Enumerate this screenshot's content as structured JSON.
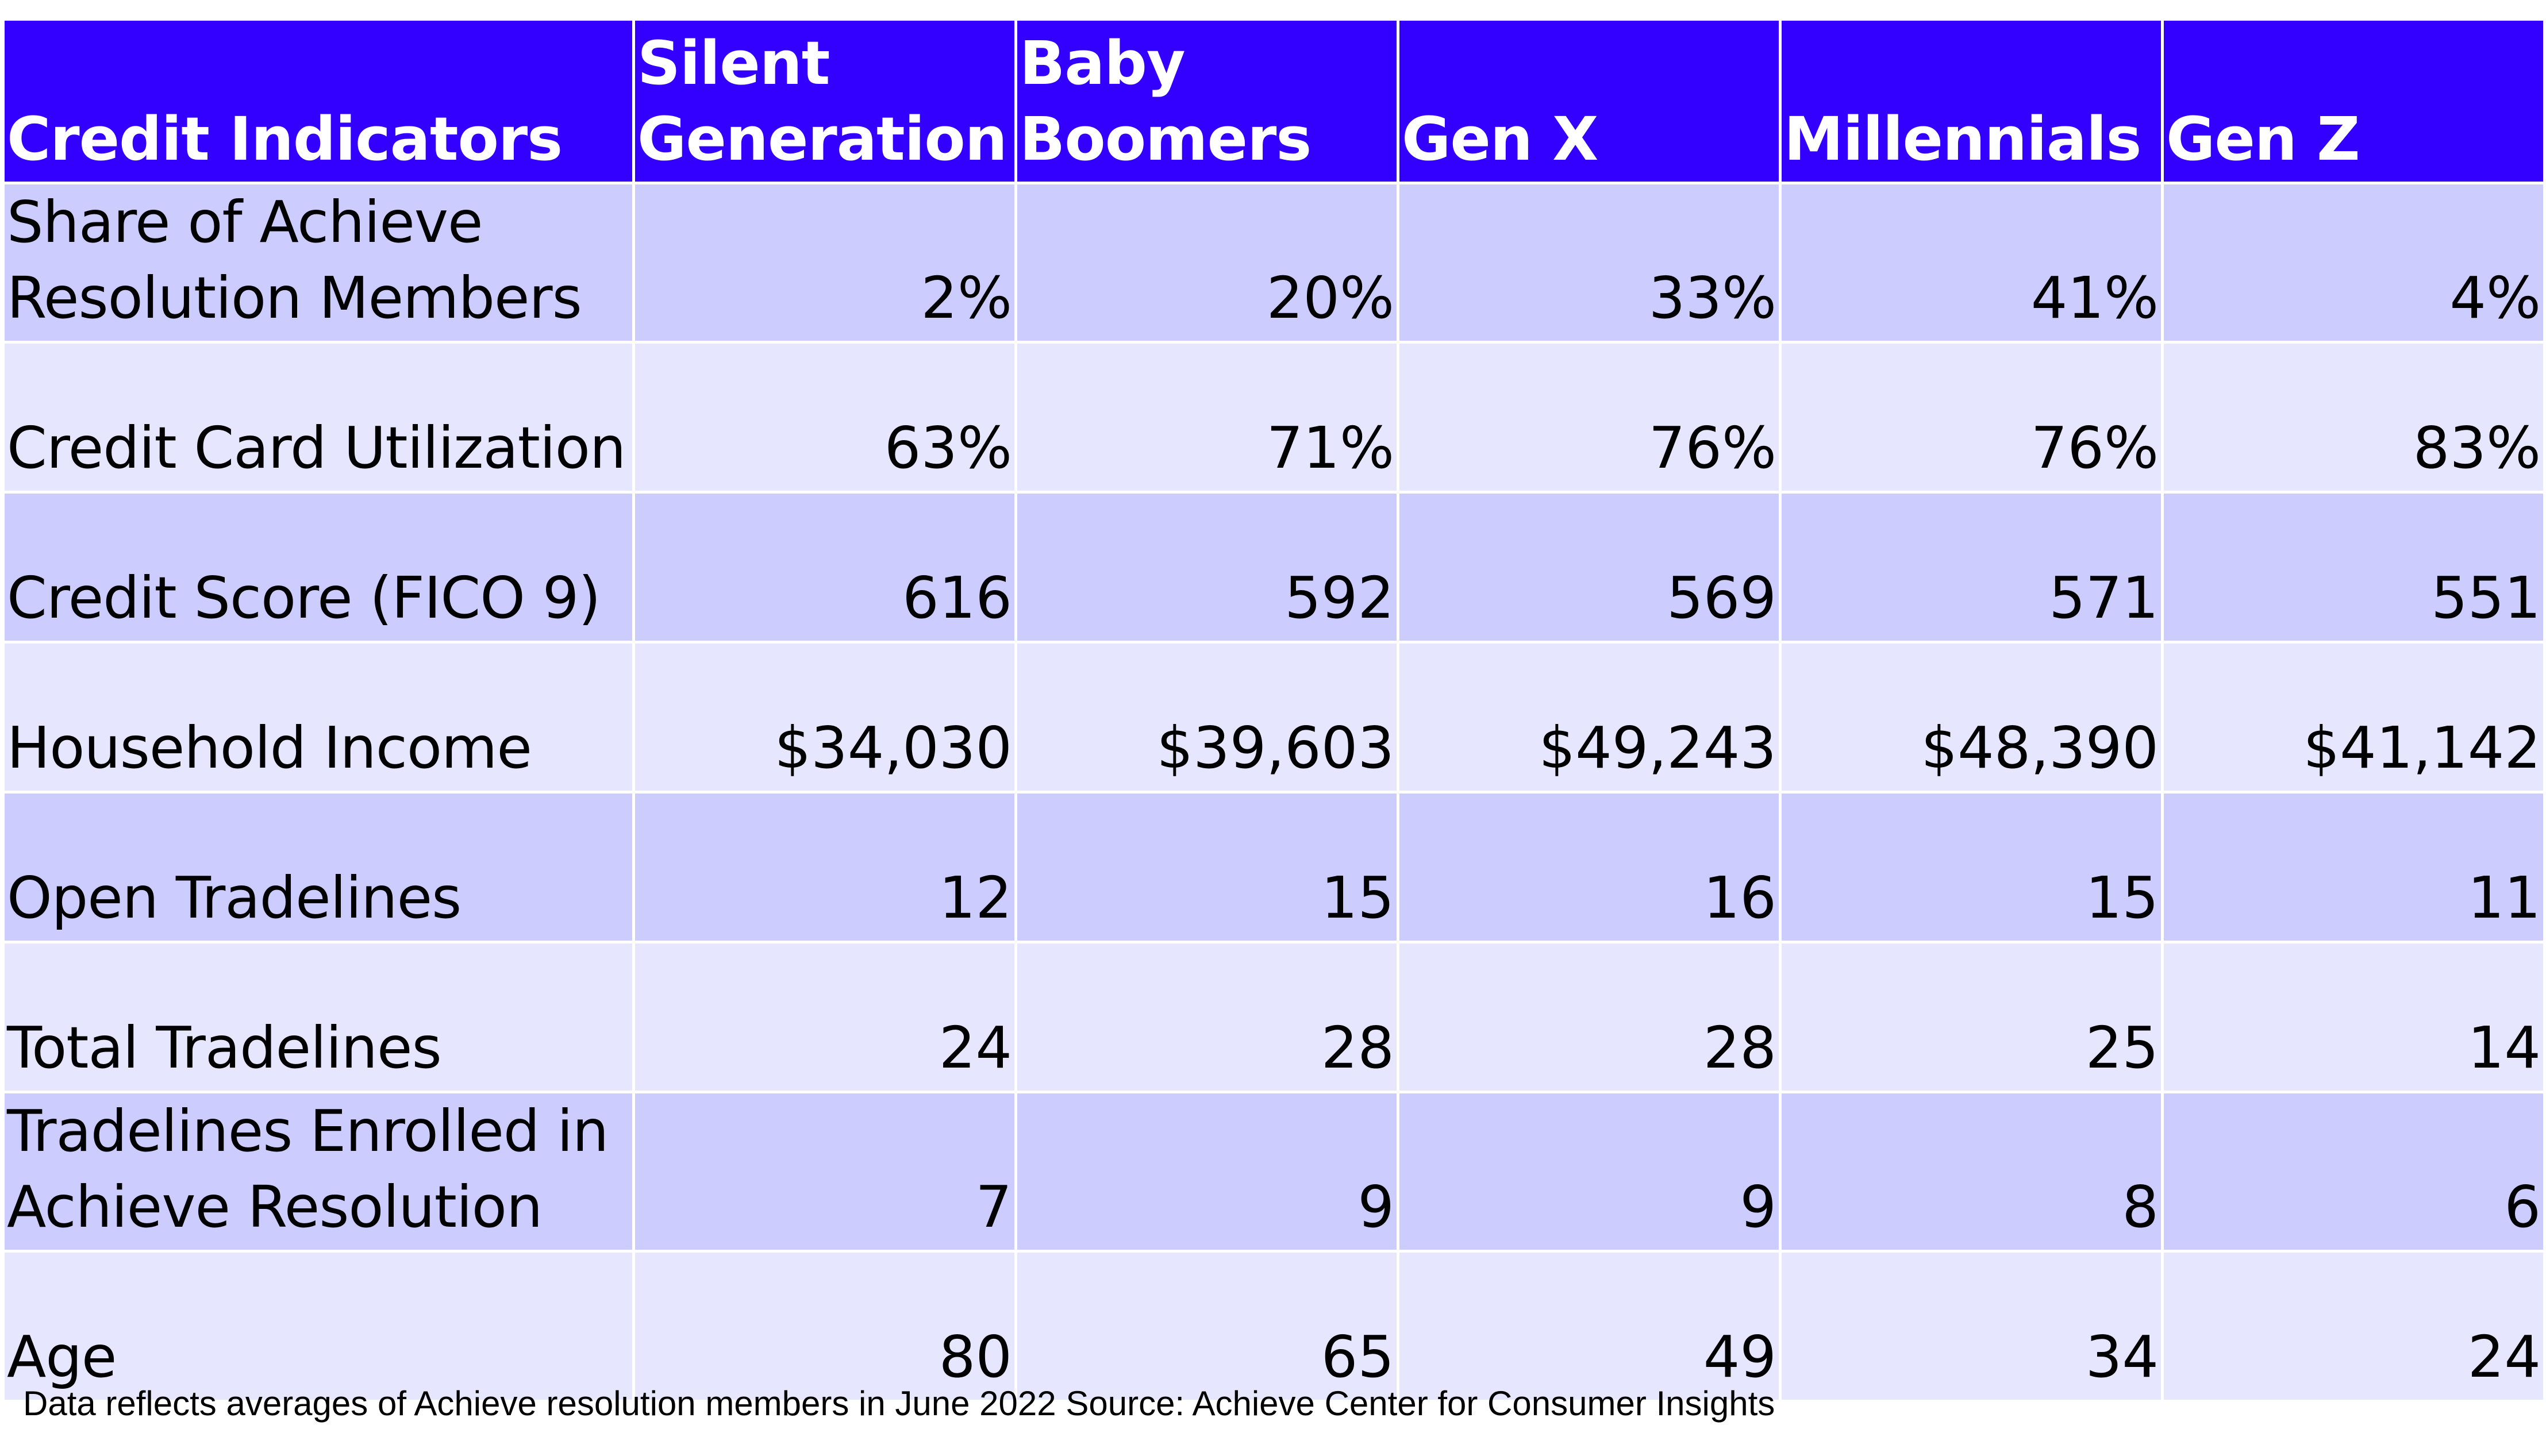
{
  "colors": {
    "header_bg": "#3300ff",
    "header_text": "#ffffff",
    "row_dark": "#ccccff",
    "row_light": "#e6e6ff"
  },
  "chart_data": {
    "type": "table",
    "columns": [
      "Credit Indicators",
      "Silent Generation",
      "Baby Boomers",
      "Gen X",
      "Millennials",
      "Gen Z"
    ],
    "rows": [
      {
        "label": "Share of Achieve Resolution Members",
        "values": [
          "2%",
          "20%",
          "33%",
          "41%",
          "4%"
        ]
      },
      {
        "label": "Credit Card Utilization",
        "values": [
          "63%",
          "71%",
          "76%",
          "76%",
          "83%"
        ]
      },
      {
        "label": "Credit Score (FICO 9)",
        "values": [
          "616",
          "592",
          "569",
          "571",
          "551"
        ]
      },
      {
        "label": "Household Income",
        "values": [
          "$34,030",
          "$39,603",
          "$49,243",
          "$48,390",
          "$41,142"
        ]
      },
      {
        "label": "Open Tradelines",
        "values": [
          "12",
          "15",
          "16",
          "15",
          "11"
        ]
      },
      {
        "label": "Total Tradelines",
        "values": [
          "24",
          "28",
          "28",
          "25",
          "14"
        ]
      },
      {
        "label": "Tradelines Enrolled in Achieve Resolution",
        "values": [
          "7",
          "9",
          "9",
          "8",
          "6"
        ]
      },
      {
        "label": "Age",
        "values": [
          "80",
          "65",
          "49",
          "34",
          "24"
        ]
      }
    ],
    "footnote": "Data reflects averages of Achieve resolution members in June 2022 Source: Achieve Center for Consumer Insights"
  }
}
